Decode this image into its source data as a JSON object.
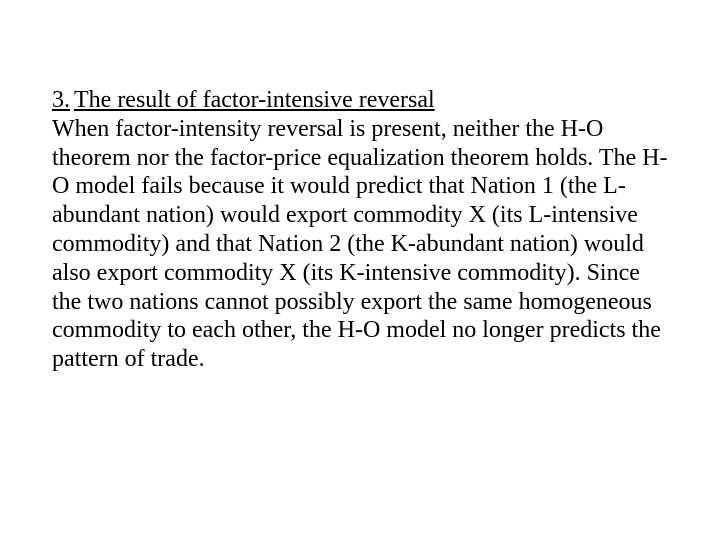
{
  "slide": {
    "heading_number": "3.",
    "heading_text": "The result of factor-intensive reversal",
    "body": "When factor-intensity reversal is present, neither the H-O theorem nor the factor-price equalization theorem holds. The H-O model fails because it would predict that Nation 1 (the L-abundant nation) would export commodity X (its L-intensive commodity) and that Nation 2 (the K-abundant nation) would also export commodity X (its K-intensive commodity). Since the two nations cannot possibly export the same homogeneous commodity to each other, the H-O model no longer predicts the pattern of trade.",
    "text_color": "#000000",
    "background_color": "#ffffff",
    "font_family": "Times New Roman",
    "font_size_pt": 18,
    "heading_underline": true
  }
}
